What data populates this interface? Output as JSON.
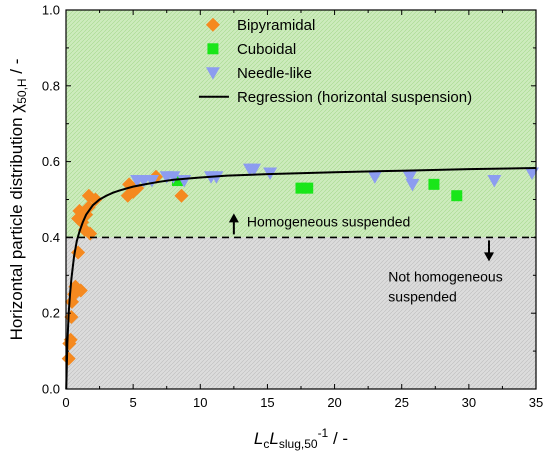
{
  "chart_data": {
    "type": "scatter",
    "xlim": [
      0,
      35
    ],
    "ylim": [
      0,
      1.0
    ],
    "x_ticks": [
      0,
      5,
      10,
      15,
      20,
      25,
      30,
      35
    ],
    "y_ticks": [
      0.0,
      0.2,
      0.4,
      0.6,
      0.8,
      1.0
    ],
    "x_tick_labels": [
      "0",
      "5",
      "10",
      "15",
      "20",
      "25",
      "30",
      "35"
    ],
    "y_tick_labels": [
      "0.0",
      "0.2",
      "0.4",
      "0.6",
      "0.8",
      "1.0"
    ],
    "xlabel": {
      "main1": "L",
      "sub1": "c",
      "main2": "L",
      "sub2": "slug,50",
      "sup": "-1",
      "suffix": " / -"
    },
    "ylabel": {
      "main": "Horizontal particle distribution χ",
      "sub": "50,H",
      "suffix": " / -"
    },
    "threshold": 0.4,
    "regions": {
      "above": {
        "label": "Homogeneous suspended",
        "color": "#c6e9b4"
      },
      "below": {
        "label_line1": "Not homogeneous",
        "label_line2": "suspended",
        "color": "#d8d8d8"
      }
    },
    "legend_position": "top-right",
    "series": [
      {
        "name": "Bipyramidal",
        "marker": "diamond",
        "color": "#f5891f",
        "points": [
          [
            0.2,
            0.08
          ],
          [
            0.25,
            0.12
          ],
          [
            0.35,
            0.13
          ],
          [
            0.4,
            0.19
          ],
          [
            0.45,
            0.23
          ],
          [
            0.6,
            0.25
          ],
          [
            0.7,
            0.27
          ],
          [
            0.9,
            0.36
          ],
          [
            1.1,
            0.26
          ],
          [
            0.9,
            0.45
          ],
          [
            1.2,
            0.44
          ],
          [
            1.0,
            0.47
          ],
          [
            1.5,
            0.46
          ],
          [
            1.4,
            0.42
          ],
          [
            1.7,
            0.48
          ],
          [
            1.8,
            0.41
          ],
          [
            1.7,
            0.51
          ],
          [
            2.2,
            0.5
          ],
          [
            4.6,
            0.51
          ],
          [
            4.7,
            0.54
          ],
          [
            5.0,
            0.52
          ],
          [
            5.3,
            0.53
          ],
          [
            6.7,
            0.56
          ],
          [
            8.6,
            0.51
          ]
        ]
      },
      {
        "name": "Cuboidal",
        "marker": "square",
        "color": "#19e619",
        "points": [
          [
            8.3,
            0.55
          ],
          [
            17.5,
            0.53
          ],
          [
            18.0,
            0.53
          ],
          [
            27.4,
            0.54
          ],
          [
            29.1,
            0.51
          ]
        ]
      },
      {
        "name": "Needle-like",
        "marker": "triangle-down",
        "color": "#8c9cf0",
        "points": [
          [
            5.3,
            0.55
          ],
          [
            5.8,
            0.55
          ],
          [
            6.4,
            0.55
          ],
          [
            7.5,
            0.56
          ],
          [
            8.0,
            0.56
          ],
          [
            8.8,
            0.55
          ],
          [
            10.8,
            0.56
          ],
          [
            11.2,
            0.56
          ],
          [
            13.7,
            0.58
          ],
          [
            14.0,
            0.58
          ],
          [
            15.2,
            0.57
          ],
          [
            23.0,
            0.56
          ],
          [
            25.6,
            0.56
          ],
          [
            25.8,
            0.54
          ],
          [
            31.9,
            0.55
          ],
          [
            34.7,
            0.57
          ]
        ]
      },
      {
        "name": "Regression (horizontal suspension)",
        "type": "line",
        "color": "#000000",
        "x": [
          0.02,
          0.1,
          0.2,
          0.3,
          0.4,
          0.5,
          0.6,
          0.8,
          1.0,
          1.25,
          1.5,
          2,
          2.5,
          3,
          3.5,
          4,
          5,
          6,
          7,
          8,
          10,
          12,
          15,
          20,
          25,
          30,
          35
        ],
        "y": [
          0.0,
          0.12,
          0.2,
          0.25,
          0.29,
          0.32,
          0.35,
          0.39,
          0.415,
          0.44,
          0.46,
          0.485,
          0.5,
          0.51,
          0.518,
          0.524,
          0.534,
          0.541,
          0.547,
          0.552,
          0.558,
          0.563,
          0.567,
          0.572,
          0.576,
          0.58,
          0.583
        ]
      }
    ]
  }
}
